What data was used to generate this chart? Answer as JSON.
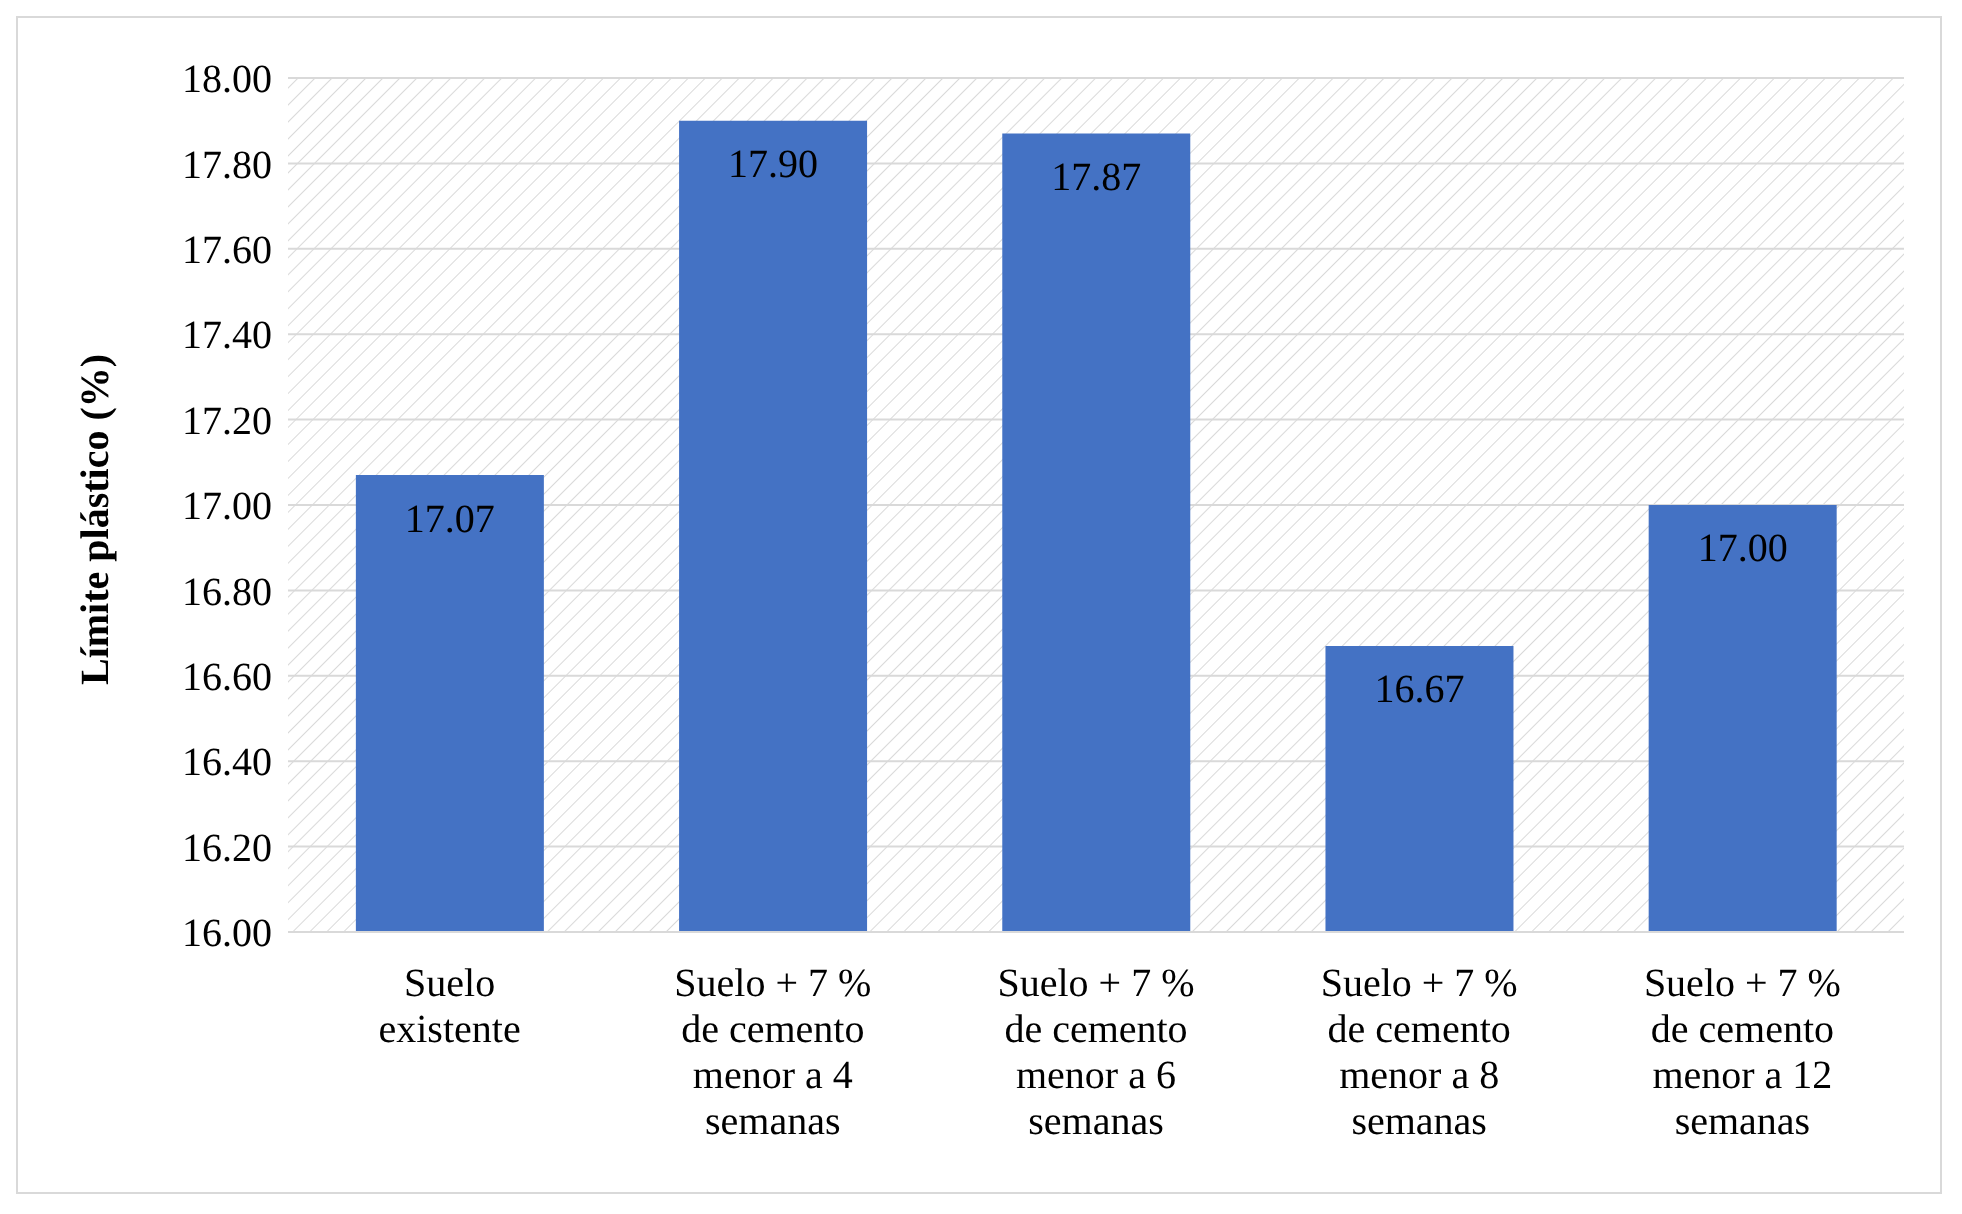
{
  "chart_data": {
    "type": "bar",
    "ylabel": "Límite plástico (%)",
    "categories": [
      "Suelo existente",
      "Suelo + 7 % de cemento menor a 4 semanas",
      "Suelo + 7 % de cemento menor a 6 semanas",
      "Suelo + 7 % de cemento menor a 8 semanas",
      "Suelo + 7 % de cemento menor a 12 semanas"
    ],
    "values": [
      17.07,
      17.9,
      17.87,
      16.67,
      17.0
    ],
    "color": "#4472c4",
    "value_labels": [
      "17.07",
      "17.90",
      "17.87",
      "16.67",
      "17.00"
    ],
    "ylim": [
      16,
      18
    ],
    "yticks": [
      {
        "value": 16,
        "label": "16.00"
      },
      {
        "value": 16.2,
        "label": "16.20"
      },
      {
        "value": 16.4,
        "label": "16.40"
      },
      {
        "value": 16.6,
        "label": "16.60"
      },
      {
        "value": 16.8,
        "label": "16.80"
      },
      {
        "value": 17,
        "label": "17.00"
      },
      {
        "value": 17.2,
        "label": "17.20"
      },
      {
        "value": 17.4,
        "label": "17.40"
      },
      {
        "value": 17.6,
        "label": "17.60"
      },
      {
        "value": 17.8,
        "label": "17.80"
      },
      {
        "value": 18,
        "label": "18.00"
      }
    ],
    "grid": "y",
    "legend": false
  }
}
